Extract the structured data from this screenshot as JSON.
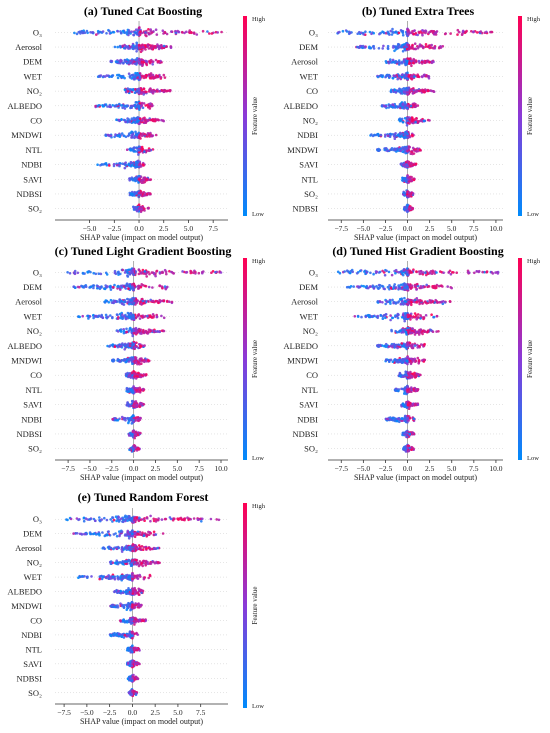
{
  "chart_data": [
    {
      "type": "scatter",
      "title": "(a) Tuned Cat Boosting",
      "xlabel": "SHAP value (impact on model output)",
      "xlim": [
        -8.5,
        9
      ],
      "xticks": [
        "−5.0",
        "−2.5",
        "0.0",
        "2.5",
        "5.0",
        "7.5"
      ],
      "xtick_values": [
        -5,
        -2.5,
        0,
        2.5,
        5,
        7.5
      ],
      "features": [
        "O₃",
        "Aerosol",
        "DEM",
        "WET",
        "NO₂",
        "ALBEDO",
        "CO",
        "MNDWI",
        "NTL",
        "NDBI",
        "SAVI",
        "NDBSI",
        "SO₂"
      ],
      "ranges": [
        [
          -7.2,
          9
        ],
        [
          -2.5,
          3.5
        ],
        [
          -3,
          2.5
        ],
        [
          -4.5,
          2.8
        ],
        [
          -1.5,
          3.2
        ],
        [
          -4.5,
          1.5
        ],
        [
          -2.5,
          2.5
        ],
        [
          -3.5,
          1.8
        ],
        [
          -1.2,
          1.5
        ],
        [
          -4.5,
          0.8
        ],
        [
          -1,
          1.2
        ],
        [
          -1,
          1.2
        ],
        [
          -0.6,
          1
        ]
      ],
      "colorbar": {
        "label": "Feature value",
        "high": "High",
        "low": "Low"
      }
    },
    {
      "type": "scatter",
      "title": "(b) Tuned Extra Trees",
      "xlabel": "SHAP value (impact on model output)",
      "xlim": [
        -9,
        10.8
      ],
      "xticks": [
        "−7.5",
        "−5.0",
        "−2.5",
        "0.0",
        "2.5",
        "5.0",
        "7.5",
        "10.0"
      ],
      "xtick_values": [
        -7.5,
        -5,
        -2.5,
        0,
        2.5,
        5,
        7.5,
        10
      ],
      "features": [
        "O₃",
        "DEM",
        "Aerosol",
        "WET",
        "CO",
        "ALBEDO",
        "NO₂",
        "NDBI",
        "MNDWI",
        "SAVI",
        "NTL",
        "SO₂",
        "NDBSI"
      ],
      "ranges": [
        [
          -8,
          9.8
        ],
        [
          -6,
          4
        ],
        [
          -2.5,
          3
        ],
        [
          -3.5,
          2.5
        ],
        [
          -2,
          3
        ],
        [
          -3,
          1.2
        ],
        [
          -1.2,
          2.5
        ],
        [
          -4.5,
          1
        ],
        [
          -3.5,
          1.5
        ],
        [
          -0.8,
          1
        ],
        [
          -0.6,
          0.8
        ],
        [
          -0.5,
          0.7
        ],
        [
          -0.4,
          0.6
        ]
      ],
      "colorbar": {
        "label": "Feature value",
        "high": "High",
        "low": "Low"
      }
    },
    {
      "type": "scatter",
      "title": "(c) Tuned Light Gradient Boosting",
      "xlabel": "SHAP value (impact on model output)",
      "xlim": [
        -9,
        10.8
      ],
      "xticks": [
        "−7.5",
        "−5.0",
        "−2.5",
        "0.0",
        "2.5",
        "5.0",
        "7.5",
        "10.0"
      ],
      "xtick_values": [
        -7.5,
        -5,
        -2.5,
        0,
        2.5,
        5,
        7.5,
        10
      ],
      "features": [
        "O₃",
        "DEM",
        "Aerosol",
        "WET",
        "NO₂",
        "ALBEDO",
        "MNDWI",
        "CO",
        "NTL",
        "SAVI",
        "NDBI",
        "NDBSI",
        "SO₂"
      ],
      "ranges": [
        [
          -8,
          10.2
        ],
        [
          -7,
          4
        ],
        [
          -3.5,
          4.5
        ],
        [
          -6.5,
          3.5
        ],
        [
          -2,
          3.5
        ],
        [
          -3.2,
          1.5
        ],
        [
          -2.5,
          1.8
        ],
        [
          -1,
          1.5
        ],
        [
          -0.8,
          1.2
        ],
        [
          -0.8,
          1.2
        ],
        [
          -2.5,
          0.8
        ],
        [
          -0.6,
          0.8
        ],
        [
          -0.5,
          0.7
        ]
      ],
      "colorbar": {
        "label": "Feature value",
        "high": "High",
        "low": "Low"
      }
    },
    {
      "type": "scatter",
      "title": "(d) Tuned Hist Gradient Boosting",
      "xlabel": "SHAP value (impact on model output)",
      "xlim": [
        -9,
        10.8
      ],
      "xticks": [
        "−7.5",
        "−5.0",
        "−2.5",
        "0.0",
        "2.5",
        "5.0",
        "7.5",
        "10.0"
      ],
      "xtick_values": [
        -7.5,
        -5,
        -2.5,
        0,
        2.5,
        5,
        7.5,
        10
      ],
      "features": [
        "O₃",
        "DEM",
        "Aerosol",
        "WET",
        "NO₂",
        "ALBEDO",
        "MNDWI",
        "CO",
        "NTL",
        "SAVI",
        "NDBI",
        "NDBSI",
        "SO₂"
      ],
      "ranges": [
        [
          -8,
          10.5
        ],
        [
          -7,
          5
        ],
        [
          -3.5,
          5
        ],
        [
          -6,
          4
        ],
        [
          -2,
          3.5
        ],
        [
          -3.5,
          2
        ],
        [
          -2.5,
          2
        ],
        [
          -1,
          1.5
        ],
        [
          -1.5,
          1.2
        ],
        [
          -0.8,
          1.2
        ],
        [
          -2.5,
          0.8
        ],
        [
          -0.6,
          0.8
        ],
        [
          -0.5,
          0.7
        ]
      ],
      "colorbar": {
        "label": "Feature value",
        "high": "High",
        "low": "Low"
      }
    },
    {
      "type": "scatter",
      "title": "(e) Tuned Random Forest",
      "xlabel": "SHAP value (impact on model output)",
      "xlim": [
        -8.5,
        10.5
      ],
      "xticks": [
        "−7.5",
        "−5.0",
        "−2.5",
        "0.0",
        "2.5",
        "5.0",
        "7.5"
      ],
      "xtick_values": [
        -7.5,
        -5,
        -2.5,
        0,
        2.5,
        5,
        7.5
      ],
      "features": [
        "O₃",
        "DEM",
        "Aerosol",
        "NO₂",
        "WET",
        "ALBEDO",
        "MNDWI",
        "CO",
        "NDBI",
        "NTL",
        "SAVI",
        "NDBSI",
        "SO₂"
      ],
      "ranges": [
        [
          -7.5,
          9.5
        ],
        [
          -6.5,
          3.5
        ],
        [
          -3.5,
          3.5
        ],
        [
          -2.5,
          3
        ],
        [
          -6,
          2
        ],
        [
          -2,
          1.2
        ],
        [
          -2.5,
          1
        ],
        [
          -1.5,
          1.5
        ],
        [
          -2.5,
          0.6
        ],
        [
          -0.6,
          0.8
        ],
        [
          -0.6,
          0.8
        ],
        [
          -0.5,
          0.6
        ],
        [
          -0.4,
          0.5
        ]
      ],
      "colorbar": {
        "label": "Feature value",
        "high": "High",
        "low": "Low"
      }
    }
  ],
  "colors": {
    "high": "#ff0052",
    "low": "#008bfb",
    "zero_line": "#999999"
  }
}
